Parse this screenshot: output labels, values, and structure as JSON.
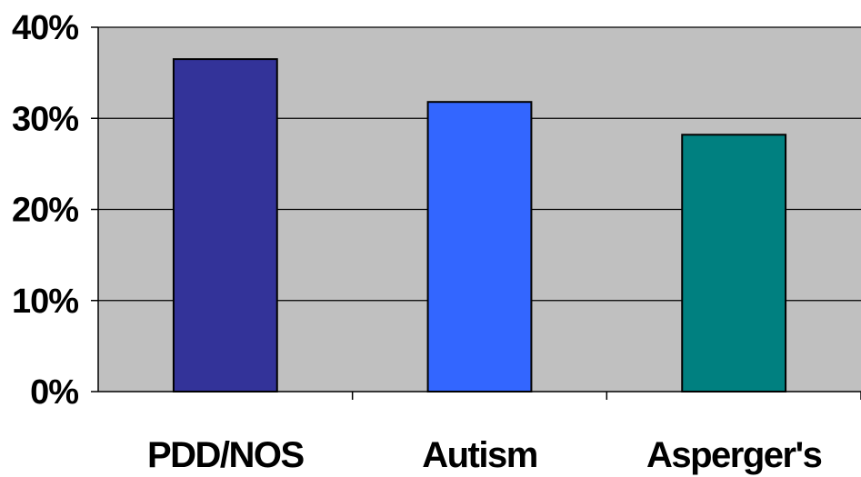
{
  "chart_data": {
    "type": "bar",
    "categories": [
      "PDD/NOS",
      "Autism",
      "Asperger's"
    ],
    "values": [
      36.5,
      31.8,
      28.2
    ],
    "bar_colors": [
      "#333399",
      "#3366ff",
      "#008080"
    ],
    "plot_background": "#c0c0c0",
    "ylim": [
      0,
      40
    ],
    "yticks": [
      0,
      10,
      20,
      30,
      40
    ],
    "ytick_labels": [
      "0%",
      "10%",
      "20%",
      "30%",
      "40%"
    ],
    "grid": true,
    "legend": "none"
  }
}
